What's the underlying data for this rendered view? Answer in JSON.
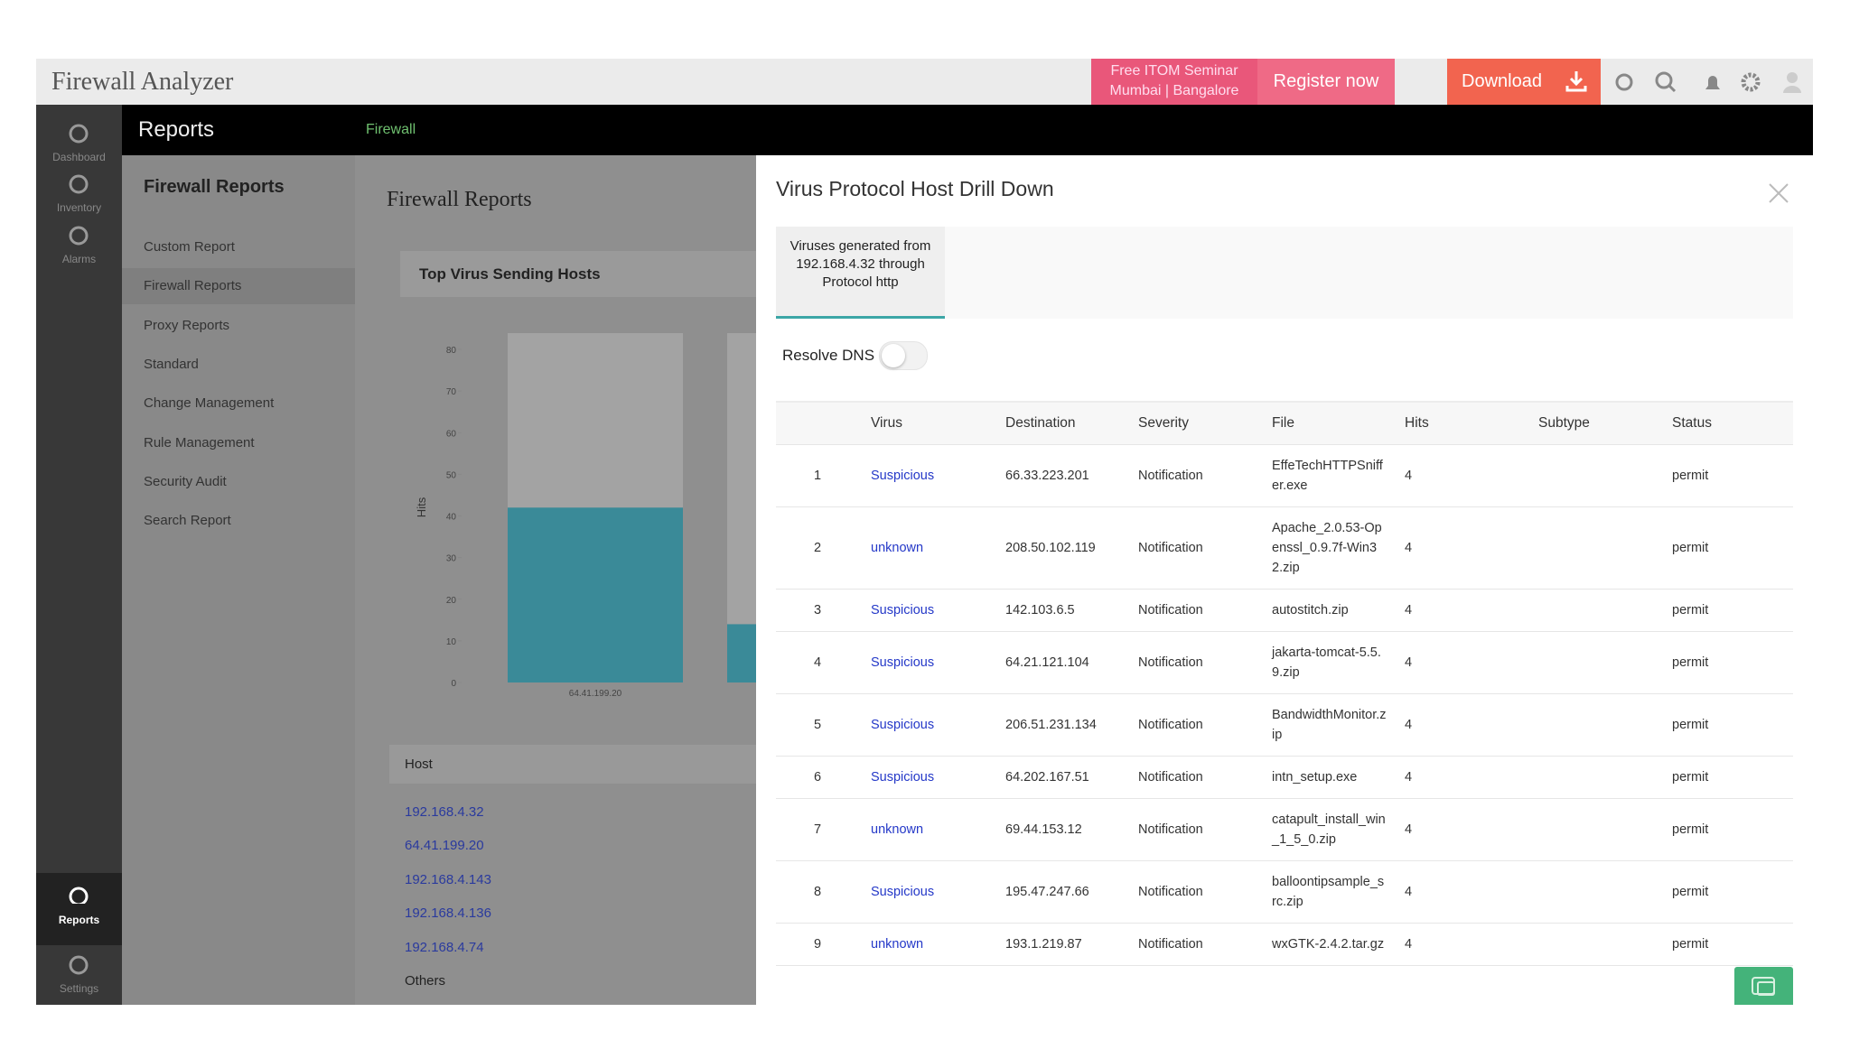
{
  "header": {
    "title": "Firewall Analyzer",
    "seminar": [
      "Free ITOM Seminar",
      "Mumbai | Bangalore"
    ],
    "register": "Register now",
    "download": "Download"
  },
  "nav": {
    "section": "Reports",
    "breadcrumb": "Firewall",
    "items": [
      "Dashboard",
      "Inventory",
      "Alarms",
      "Reports",
      "Settings"
    ]
  },
  "submenu": {
    "title": "Firewall Reports",
    "items": [
      "Custom Report",
      "Firewall Reports",
      "Proxy Reports",
      "Standard",
      "Change Management",
      "Rule Management",
      "Security Audit",
      "Search Report"
    ]
  },
  "content": {
    "title": "Firewall Reports",
    "card_title": "Top Virus Sending Hosts",
    "host_header": "Host",
    "hosts": [
      "192.168.4.32",
      "64.41.199.20",
      "192.168.4.143",
      "192.168.4.136",
      "192.168.4.74",
      "Others"
    ]
  },
  "chart_data": {
    "type": "bar",
    "ylabel": "Hits",
    "categories": [
      "64.41.199.20",
      null
    ],
    "values": [
      42,
      14
    ],
    "color": "#3a8a98",
    "ylim": [
      0,
      80
    ],
    "yticks": [
      0,
      10,
      20,
      30,
      40,
      50,
      60,
      70,
      80
    ]
  },
  "drilldown": {
    "title": "Virus Protocol Host Drill Down",
    "tab": "Viruses generated from 192.168.4.32 through Protocol http",
    "resolve_dns": "Resolve DNS",
    "columns": [
      "Virus",
      "Destination",
      "Severity",
      "File",
      "Hits",
      "Subtype",
      "Status"
    ],
    "rows": [
      [
        1,
        "Suspicious",
        "66.33.223.201",
        "Notification",
        "EffeTechHTTPSniffer.exe",
        4,
        "permit"
      ],
      [
        2,
        "unknown",
        "208.50.102.119",
        "Notification",
        "Apache_2.0.53-Openssl_0.9.7f-Win32.zip",
        4,
        "permit"
      ],
      [
        3,
        "Suspicious",
        "142.103.6.5",
        "Notification",
        "autostitch.zip",
        4,
        "permit"
      ],
      [
        4,
        "Suspicious",
        "64.21.121.104",
        "Notification",
        "jakarta-tomcat-5.5.9.zip",
        4,
        "permit"
      ],
      [
        5,
        "Suspicious",
        "206.51.231.134",
        "Notification",
        "BandwidthMonitor.zip",
        4,
        "permit"
      ],
      [
        6,
        "Suspicious",
        "64.202.167.51",
        "Notification",
        "intn_setup.exe",
        4,
        "permit"
      ],
      [
        7,
        "unknown",
        "69.44.153.12",
        "Notification",
        "catapult_install_win_1_5_0.zip",
        4,
        "permit"
      ],
      [
        8,
        "Suspicious",
        "195.47.247.66",
        "Notification",
        "balloontipsample_src.zip",
        4,
        "permit"
      ],
      [
        9,
        "unknown",
        "193.1.219.87",
        "Notification",
        "wxGTK-2.4.2.tar.gz",
        4,
        "permit"
      ]
    ]
  }
}
